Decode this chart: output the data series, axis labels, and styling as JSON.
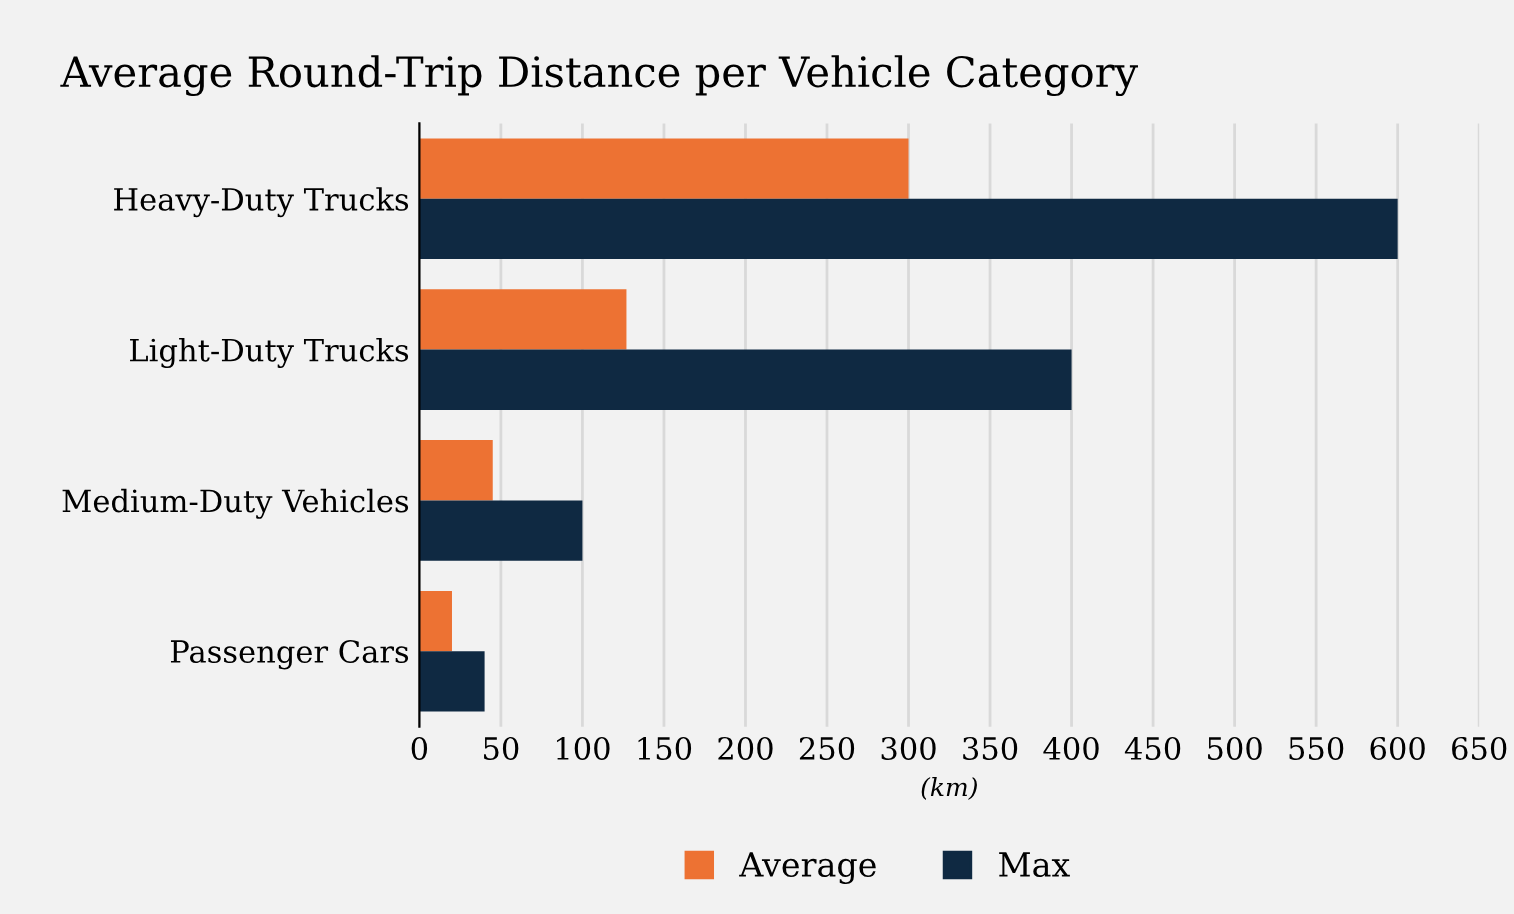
{
  "chart_data": {
    "type": "bar",
    "orientation": "horizontal",
    "title": "Average Round-Trip Distance per Vehicle Category",
    "xlabel": "(km)",
    "categories": [
      "Heavy-Duty Trucks",
      "Light-Duty Trucks",
      "Medium-Duty Vehicles",
      "Passenger Cars"
    ],
    "series": [
      {
        "name": "Average",
        "color": "#ed7233",
        "values": [
          300,
          127,
          45,
          20
        ]
      },
      {
        "name": "Max",
        "color": "#0f2942",
        "values": [
          600,
          400,
          100,
          40
        ]
      }
    ],
    "xlim": [
      0,
      650
    ],
    "xticks": [
      0,
      50,
      100,
      150,
      200,
      250,
      300,
      350,
      400,
      450,
      500,
      550,
      600,
      650
    ],
    "grid": "x",
    "legend": "bottom"
  }
}
